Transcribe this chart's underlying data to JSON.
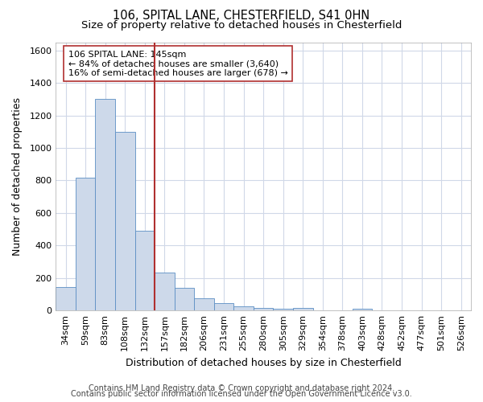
{
  "title1": "106, SPITAL LANE, CHESTERFIELD, S41 0HN",
  "title2": "Size of property relative to detached houses in Chesterfield",
  "xlabel": "Distribution of detached houses by size in Chesterfield",
  "ylabel": "Number of detached properties",
  "footnote1": "Contains HM Land Registry data © Crown copyright and database right 2024.",
  "footnote2": "Contains public sector information licensed under the Open Government Licence v3.0.",
  "bin_labels": [
    "34sqm",
    "59sqm",
    "83sqm",
    "108sqm",
    "132sqm",
    "157sqm",
    "182sqm",
    "206sqm",
    "231sqm",
    "255sqm",
    "280sqm",
    "305sqm",
    "329sqm",
    "354sqm",
    "378sqm",
    "403sqm",
    "428sqm",
    "452sqm",
    "477sqm",
    "501sqm",
    "526sqm"
  ],
  "bar_heights": [
    145,
    815,
    1300,
    1100,
    490,
    235,
    140,
    75,
    45,
    25,
    15,
    10,
    15,
    0,
    0,
    10,
    0,
    0,
    0,
    0,
    0
  ],
  "bar_color": "#cdd9ea",
  "bar_edge_color": "#5b8ec4",
  "property_line_color": "#b03030",
  "annotation_line1": "106 SPITAL LANE: 145sqm",
  "annotation_line2": "← 84% of detached houses are smaller (3,640)",
  "annotation_line3": "16% of semi-detached houses are larger (678) →",
  "annotation_box_color": "white",
  "annotation_box_edge_color": "#b03030",
  "ylim": [
    0,
    1650
  ],
  "background_color": "#ffffff",
  "grid_color": "#d0d8e8",
  "title_fontsize": 10.5,
  "subtitle_fontsize": 9.5,
  "axis_label_fontsize": 9,
  "tick_fontsize": 8,
  "annotation_fontsize": 8,
  "footnote_fontsize": 7
}
